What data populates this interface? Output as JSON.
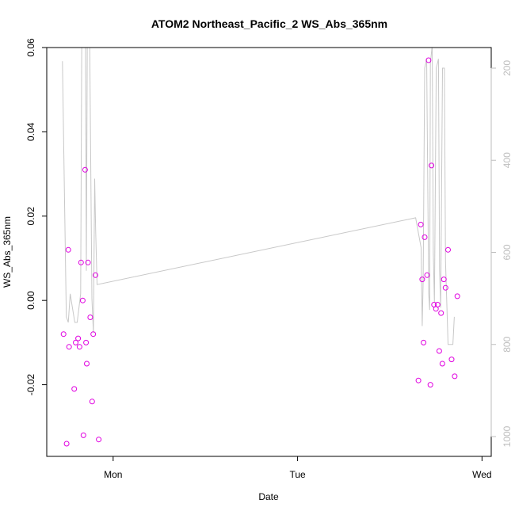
{
  "chart_data": {
    "type": "scatter",
    "title": "ATOM2 Northeast_Pacific_2 WS_Abs_365nm",
    "xlabel": "Date",
    "ylabel": "WS_Abs_365nm",
    "x_ticks": [
      {
        "day": 1,
        "label": "Mon"
      },
      {
        "day": 2,
        "label": "Tue"
      },
      {
        "day": 3,
        "label": "Wed"
      }
    ],
    "xlim": [
      0.64,
      3.05
    ],
    "ylim": [
      -0.037,
      0.06
    ],
    "y_ticks": [
      "-0.02",
      "0.00",
      "0.02",
      "0.04",
      "0.06"
    ],
    "secondary_axis": {
      "color": "#bebebe",
      "reversed": true,
      "ticks": [
        "200",
        "400",
        "600",
        "800",
        "1000"
      ]
    },
    "point_color": "#e000e0",
    "line_color": "#c8c8c8",
    "series": [
      {
        "kind": "points",
        "points": [
          [
            0.731,
            -0.008
          ],
          [
            0.748,
            -0.034
          ],
          [
            0.757,
            0.012
          ],
          [
            0.761,
            -0.011
          ],
          [
            0.789,
            -0.021
          ],
          [
            0.797,
            -0.01
          ],
          [
            0.81,
            -0.009
          ],
          [
            0.818,
            -0.011
          ],
          [
            0.826,
            0.009
          ],
          [
            0.835,
            0.0
          ],
          [
            0.839,
            -0.032
          ],
          [
            0.848,
            0.031
          ],
          [
            0.853,
            -0.01
          ],
          [
            0.857,
            -0.015
          ],
          [
            0.864,
            0.009
          ],
          [
            0.876,
            -0.004
          ],
          [
            0.886,
            -0.024
          ],
          [
            0.892,
            -0.008
          ],
          [
            0.904,
            0.006
          ],
          [
            0.922,
            -0.033
          ],
          [
            2.655,
            -0.019
          ],
          [
            2.668,
            0.018
          ],
          [
            2.676,
            0.005
          ],
          [
            2.683,
            -0.01
          ],
          [
            2.689,
            0.015
          ],
          [
            2.702,
            0.006
          ],
          [
            2.71,
            0.057
          ],
          [
            2.72,
            -0.02
          ],
          [
            2.726,
            0.032
          ],
          [
            2.74,
            -0.001
          ],
          [
            2.75,
            -0.002
          ],
          [
            2.759,
            -0.001
          ],
          [
            2.768,
            -0.012
          ],
          [
            2.778,
            -0.003
          ],
          [
            2.785,
            -0.015
          ],
          [
            2.793,
            0.005
          ],
          [
            2.802,
            0.003
          ],
          [
            2.816,
            0.012
          ],
          [
            2.835,
            -0.014
          ],
          [
            2.852,
            -0.018
          ],
          [
            2.866,
            0.001
          ]
        ]
      },
      {
        "kind": "line",
        "axis": "secondary",
        "points": [
          [
            0.725,
            185
          ],
          [
            0.746,
            740
          ],
          [
            0.757,
            752
          ],
          [
            0.767,
            690
          ],
          [
            0.792,
            752
          ],
          [
            0.805,
            752
          ],
          [
            0.824,
            690
          ],
          [
            0.83,
            140
          ],
          [
            0.85,
            140
          ],
          [
            0.855,
            640
          ],
          [
            0.86,
            120
          ],
          [
            0.873,
            140
          ],
          [
            0.885,
            700
          ],
          [
            0.893,
            775
          ],
          [
            0.9,
            440
          ],
          [
            0.905,
            550
          ],
          [
            0.913,
            670
          ],
          [
            2.64,
            525
          ],
          [
            2.67,
            590
          ],
          [
            2.676,
            760
          ],
          [
            2.681,
            660
          ],
          [
            2.689,
            200
          ],
          [
            2.7,
            180
          ],
          [
            2.711,
            690
          ],
          [
            2.716,
            725
          ],
          [
            2.72,
            190
          ],
          [
            2.73,
            150
          ],
          [
            2.736,
            600
          ],
          [
            2.742,
            710
          ],
          [
            2.752,
            200
          ],
          [
            2.764,
            180
          ],
          [
            2.77,
            640
          ],
          [
            2.776,
            720
          ],
          [
            2.786,
            200
          ],
          [
            2.796,
            200
          ],
          [
            2.802,
            620
          ],
          [
            2.81,
            720
          ],
          [
            2.816,
            800
          ],
          [
            2.842,
            800
          ],
          [
            2.85,
            740
          ]
        ]
      }
    ]
  }
}
